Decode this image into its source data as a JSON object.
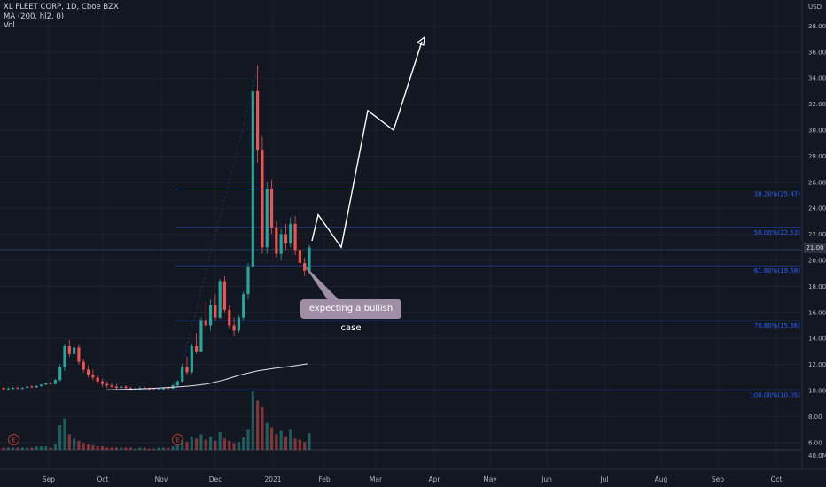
{
  "header": {
    "legend_lines": [
      "XL FLEET CORP, 1D, Cboe BZX",
      "MA (200, hl2, 0)",
      "Vol"
    ],
    "currency": "USD",
    "last_price": "21.00"
  },
  "annotation": {
    "callout_text": "expecting a bullish case"
  },
  "earnings_markers": [
    "E",
    "E"
  ],
  "colors": {
    "background": "#131722",
    "up": "#26a69a",
    "down": "#ef5350",
    "fib": "#2962ff",
    "ma": "#e0e3eb",
    "callout": "#9f8fa6"
  },
  "chart_data": {
    "type": "candlestick",
    "x_ticks": [
      "Sep",
      "Oct",
      "Nov",
      "Dec",
      "2021",
      "Feb",
      "Mar",
      "Apr",
      "May",
      "Jun",
      "Jul",
      "Aug",
      "Sep",
      "Oct"
    ],
    "y_ticks": [
      "38.00",
      "36.00",
      "34.00",
      "32.00",
      "30.00",
      "28.00",
      "26.00",
      "24.00",
      "22.00",
      "20.00",
      "18.00",
      "16.00",
      "14.00",
      "12.00",
      "10.00",
      "8.00",
      "6.00"
    ],
    "ylim": [
      5,
      39.5
    ],
    "vol_tick": "40.0M",
    "fib_levels": [
      {
        "label": "38.20%(25.47)",
        "value": 25.47
      },
      {
        "label": "50.00%(22.53)",
        "value": 22.53
      },
      {
        "label": "61.80%(19.58)",
        "value": 19.58
      },
      {
        "label": "78.60%(15.36)",
        "value": 15.36
      },
      {
        "label": "100.00%(10.05)",
        "value": 10.05
      }
    ],
    "candles": [
      [
        10.2,
        10.3,
        10.0,
        10.1
      ],
      [
        10.1,
        10.25,
        10.0,
        10.15
      ],
      [
        10.15,
        10.3,
        10.05,
        10.2
      ],
      [
        10.2,
        10.3,
        10.1,
        10.15
      ],
      [
        10.15,
        10.25,
        10.05,
        10.2
      ],
      [
        10.2,
        10.35,
        10.1,
        10.3
      ],
      [
        10.3,
        10.4,
        10.2,
        10.25
      ],
      [
        10.25,
        10.4,
        10.2,
        10.35
      ],
      [
        10.35,
        10.5,
        10.3,
        10.45
      ],
      [
        10.45,
        10.6,
        10.4,
        10.55
      ],
      [
        10.55,
        10.7,
        10.45,
        10.5
      ],
      [
        10.5,
        10.9,
        10.45,
        10.8
      ],
      [
        10.8,
        12.0,
        10.7,
        11.8
      ],
      [
        11.8,
        13.6,
        11.5,
        13.4
      ],
      [
        13.4,
        13.9,
        12.6,
        12.8
      ],
      [
        12.8,
        13.6,
        12.5,
        13.3
      ],
      [
        13.3,
        13.5,
        12.0,
        12.2
      ],
      [
        12.2,
        12.4,
        11.4,
        11.6
      ],
      [
        11.6,
        11.9,
        11.0,
        11.2
      ],
      [
        11.2,
        11.6,
        10.8,
        11.0
      ],
      [
        11.0,
        11.2,
        10.5,
        10.7
      ],
      [
        10.7,
        10.9,
        10.3,
        10.5
      ],
      [
        10.5,
        10.7,
        10.2,
        10.4
      ],
      [
        10.4,
        10.6,
        10.2,
        10.3
      ],
      [
        10.3,
        10.5,
        10.1,
        10.2
      ],
      [
        10.2,
        10.4,
        10.1,
        10.3
      ],
      [
        10.3,
        10.4,
        10.1,
        10.2
      ],
      [
        10.2,
        10.3,
        10.0,
        10.1
      ],
      [
        10.1,
        10.2,
        10.0,
        10.15
      ],
      [
        10.15,
        10.3,
        10.05,
        10.2
      ],
      [
        10.2,
        10.3,
        10.1,
        10.15
      ],
      [
        10.15,
        10.25,
        10.0,
        10.1
      ],
      [
        10.1,
        10.2,
        10.0,
        10.05
      ],
      [
        10.05,
        10.2,
        10.0,
        10.1
      ],
      [
        10.1,
        10.25,
        10.0,
        10.2
      ],
      [
        10.2,
        10.3,
        10.1,
        10.15
      ],
      [
        10.15,
        10.5,
        10.1,
        10.4
      ],
      [
        10.4,
        10.8,
        10.3,
        10.7
      ],
      [
        10.7,
        12.0,
        10.6,
        11.8
      ],
      [
        11.8,
        12.6,
        11.2,
        11.4
      ],
      [
        11.4,
        13.6,
        11.3,
        13.4
      ],
      [
        13.4,
        14.4,
        12.8,
        13.0
      ],
      [
        13.0,
        15.6,
        12.9,
        15.4
      ],
      [
        15.4,
        16.8,
        14.8,
        15.0
      ],
      [
        15.0,
        17.0,
        14.6,
        16.6
      ],
      [
        16.6,
        17.4,
        15.4,
        15.6
      ],
      [
        15.6,
        18.6,
        15.5,
        18.4
      ],
      [
        18.4,
        18.8,
        16.0,
        16.2
      ],
      [
        16.2,
        16.6,
        14.8,
        15.0
      ],
      [
        15.0,
        15.6,
        14.2,
        14.6
      ],
      [
        14.6,
        15.8,
        14.4,
        15.6
      ],
      [
        15.6,
        17.6,
        15.4,
        17.4
      ],
      [
        17.4,
        19.8,
        17.0,
        19.5
      ],
      [
        19.5,
        34.0,
        19.3,
        33.0
      ],
      [
        33.0,
        35.0,
        27.5,
        28.5
      ],
      [
        28.5,
        29.5,
        20.5,
        21.0
      ],
      [
        21.0,
        26.0,
        20.5,
        25.5
      ],
      [
        25.5,
        26.2,
        22.0,
        22.5
      ],
      [
        22.5,
        23.0,
        20.2,
        20.5
      ],
      [
        20.5,
        22.4,
        20.0,
        22.0
      ],
      [
        22.0,
        22.8,
        20.8,
        21.3
      ],
      [
        21.3,
        23.3,
        21.0,
        22.8
      ],
      [
        22.8,
        23.4,
        20.4,
        20.8
      ],
      [
        20.8,
        21.8,
        19.5,
        19.8
      ],
      [
        19.8,
        20.2,
        18.8,
        19.2
      ],
      [
        19.2,
        21.2,
        19.0,
        21.0
      ]
    ],
    "ma_values": [
      10.05,
      10.08,
      10.12,
      10.18,
      10.25,
      10.35,
      10.5,
      10.8,
      11.2,
      11.5,
      11.7,
      11.85,
      12.05
    ],
    "volume_millions": [
      2,
      2,
      2,
      2,
      2,
      2,
      2,
      3,
      3,
      3,
      2,
      5,
      22,
      28,
      14,
      10,
      8,
      6,
      5,
      4,
      3,
      3,
      2,
      2,
      2,
      2,
      2,
      2,
      1,
      2,
      2,
      1,
      1,
      2,
      2,
      2,
      3,
      4,
      9,
      7,
      12,
      10,
      14,
      9,
      12,
      8,
      16,
      10,
      8,
      6,
      7,
      11,
      18,
      52,
      44,
      38,
      24,
      20,
      14,
      17,
      12,
      18,
      10,
      9,
      7,
      15
    ],
    "projection_path": [
      21.5,
      23.5,
      21.0,
      31.5,
      30.0,
      36.8
    ]
  }
}
